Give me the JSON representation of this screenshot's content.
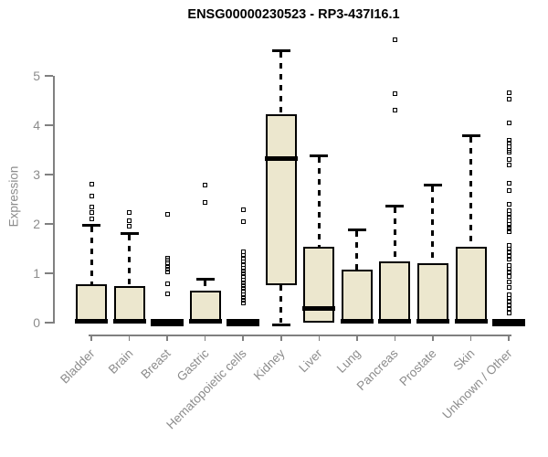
{
  "chart_data": {
    "type": "boxplot",
    "title": "ENSG00000230523 - RP3-437I16.1",
    "ylabel": "Expression",
    "xlabel": "",
    "ylim": [
      0,
      5.8
    ],
    "yticks": [
      0,
      1,
      2,
      3,
      4,
      5
    ],
    "grid": false,
    "legend": false,
    "categories": [
      "Bladder",
      "Brain",
      "Breast",
      "Gastric",
      "Hematopoietic cells",
      "Kidney",
      "Liver",
      "Lung",
      "Pancreas",
      "Prostate",
      "Skin",
      "Unknown / Other"
    ],
    "boxes": [
      {
        "category": "Bladder",
        "q1": 0,
        "median": 0.02,
        "q3": 0.78,
        "whisker_low": 0,
        "whisker_high": 1.98,
        "flat": false,
        "outliers": [
          2.11,
          2.23,
          2.35,
          2.56,
          2.8
        ]
      },
      {
        "category": "Brain",
        "q1": 0,
        "median": 0.02,
        "q3": 0.74,
        "whisker_low": 0,
        "whisker_high": 1.81,
        "flat": false,
        "outliers": [
          1.96,
          2.06,
          2.24
        ]
      },
      {
        "category": "Breast",
        "q1": 0,
        "median": 0.02,
        "q3": 0.05,
        "whisker_low": 0,
        "whisker_high": 0.05,
        "flat": true,
        "outliers": [
          0.59,
          0.78,
          1.02,
          1.08,
          1.14,
          1.2,
          1.26,
          1.31,
          2.19
        ]
      },
      {
        "category": "Gastric",
        "q1": 0,
        "median": 0.02,
        "q3": 0.65,
        "whisker_low": 0,
        "whisker_high": 0.89,
        "flat": false,
        "outliers": [
          2.43,
          2.78
        ]
      },
      {
        "category": "Hematopoietic cells",
        "q1": 0,
        "median": 0.02,
        "q3": 0.05,
        "whisker_low": 0,
        "whisker_high": 0.05,
        "flat": true,
        "outliers": [
          0.39,
          0.45,
          0.51,
          0.57,
          0.63,
          0.69,
          0.75,
          0.81,
          0.87,
          0.93,
          0.99,
          1.05,
          1.11,
          1.17,
          1.23,
          1.3,
          1.37,
          1.44,
          2.04,
          2.28
        ]
      },
      {
        "category": "Kidney",
        "q1": 0.76,
        "median": 3.33,
        "q3": 4.22,
        "whisker_low": 0,
        "whisker_high": 5.52,
        "flat": false,
        "outliers": []
      },
      {
        "category": "Liver",
        "q1": 0,
        "median": 0.28,
        "q3": 1.54,
        "whisker_low": 0,
        "whisker_high": 3.39,
        "flat": false,
        "outliers": []
      },
      {
        "category": "Lung",
        "q1": 0,
        "median": 0.02,
        "q3": 1.07,
        "whisker_low": 0,
        "whisker_high": 1.89,
        "flat": false,
        "outliers": []
      },
      {
        "category": "Pancreas",
        "q1": 0,
        "median": 0.02,
        "q3": 1.24,
        "whisker_low": 0,
        "whisker_high": 2.37,
        "flat": false,
        "outliers": [
          4.31,
          4.63,
          5.74
        ]
      },
      {
        "category": "Prostate",
        "q1": 0,
        "median": 0.02,
        "q3": 1.2,
        "whisker_low": 0,
        "whisker_high": 2.8,
        "flat": false,
        "outliers": []
      },
      {
        "category": "Skin",
        "q1": 0,
        "median": 0.02,
        "q3": 1.54,
        "whisker_low": 0,
        "whisker_high": 3.8,
        "flat": false,
        "outliers": []
      },
      {
        "category": "Unknown / Other",
        "q1": 0,
        "median": 0.02,
        "q3": 0.05,
        "whisker_low": 0,
        "whisker_high": 0.05,
        "flat": true,
        "outliers": [
          0.19,
          0.28,
          0.35,
          0.43,
          0.5,
          0.57,
          0.72,
          0.83,
          0.93,
          1.02,
          1.08,
          1.15,
          1.28,
          1.35,
          1.43,
          1.5,
          1.57,
          1.85,
          1.89,
          1.94,
          2.0,
          2.06,
          2.13,
          2.19,
          2.26,
          2.39,
          2.67,
          2.83,
          3.2,
          3.3,
          3.46,
          3.5,
          3.56,
          3.63,
          3.7,
          4.04,
          4.52,
          4.65
        ]
      }
    ],
    "colors": {
      "box_fill": "#ECE7CE",
      "box_border": "#000000",
      "median": "#000000",
      "whisker": "#000000",
      "outlier": "#000000",
      "axis_line": "#808080",
      "tick_label": "#8C8C8C",
      "title": "#000000"
    }
  }
}
